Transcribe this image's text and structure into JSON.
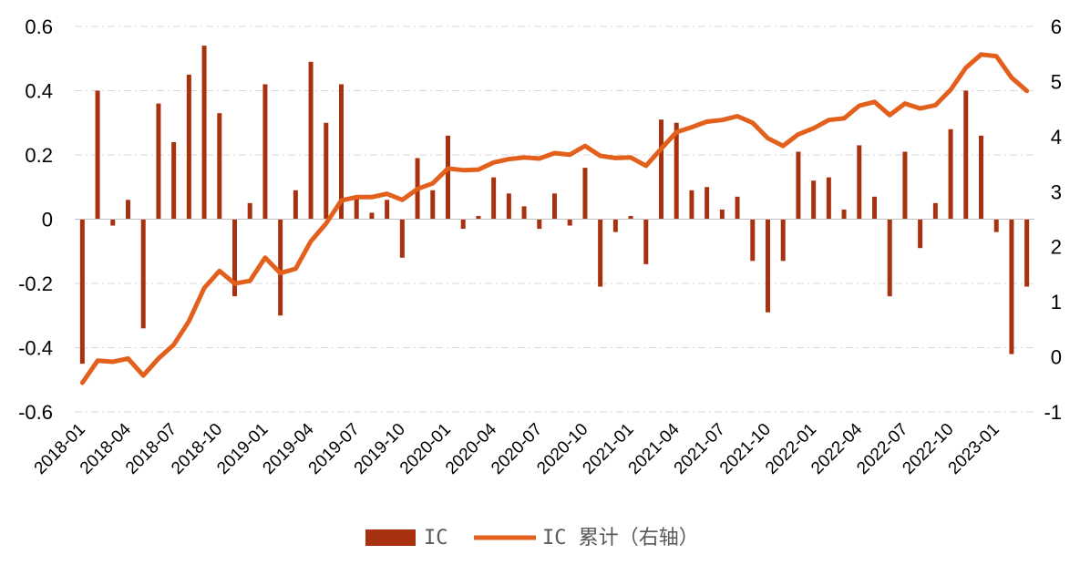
{
  "chart_data": {
    "type": "bar+line",
    "x": [
      "2018-01",
      "2018-02",
      "2018-03",
      "2018-04",
      "2018-05",
      "2018-06",
      "2018-07",
      "2018-08",
      "2018-09",
      "2018-10",
      "2018-11",
      "2018-12",
      "2019-01",
      "2019-02",
      "2019-03",
      "2019-04",
      "2019-05",
      "2019-06",
      "2019-07",
      "2019-08",
      "2019-09",
      "2019-10",
      "2019-11",
      "2019-12",
      "2020-01",
      "2020-02",
      "2020-03",
      "2020-04",
      "2020-05",
      "2020-06",
      "2020-07",
      "2020-08",
      "2020-09",
      "2020-10",
      "2020-11",
      "2020-12",
      "2021-01",
      "2021-02",
      "2021-03",
      "2021-04",
      "2021-05",
      "2021-06",
      "2021-07",
      "2021-08",
      "2021-09",
      "2021-10",
      "2021-11",
      "2021-12",
      "2022-01",
      "2022-02",
      "2022-03",
      "2022-04",
      "2022-05",
      "2022-06",
      "2022-07",
      "2022-08",
      "2022-09",
      "2022-10",
      "2022-11",
      "2022-12",
      "2023-01",
      "2023-02",
      "2023-03"
    ],
    "x_tick_labels": [
      "2018-01",
      "2018-04",
      "2018-07",
      "2018-10",
      "2019-01",
      "2019-04",
      "2019-07",
      "2019-10",
      "2020-01",
      "2020-04",
      "2020-07",
      "2020-10",
      "2021-01",
      "2021-04",
      "2021-07",
      "2021-10",
      "2022-01",
      "2022-04",
      "2022-07",
      "2022-10",
      "2023-01"
    ],
    "series": [
      {
        "name": "IC",
        "axis": "left",
        "kind": "bar",
        "color": "#A8320F",
        "values": [
          -0.45,
          0.4,
          -0.02,
          0.06,
          -0.34,
          0.36,
          0.24,
          0.45,
          0.54,
          0.33,
          -0.24,
          0.05,
          0.42,
          -0.3,
          0.09,
          0.49,
          0.3,
          0.42,
          0.07,
          0.02,
          0.06,
          -0.12,
          0.19,
          0.09,
          0.26,
          -0.03,
          0.01,
          0.13,
          0.08,
          0.04,
          -0.03,
          0.08,
          -0.02,
          0.16,
          -0.21,
          -0.04,
          0.01,
          -0.14,
          0.31,
          0.3,
          0.09,
          0.1,
          0.03,
          0.07,
          -0.13,
          -0.29,
          -0.13,
          0.21,
          0.12,
          0.13,
          0.03,
          0.23,
          0.07,
          -0.24,
          0.21,
          -0.09,
          0.05,
          0.28,
          0.4,
          0.26,
          -0.04,
          -0.42,
          -0.21
        ]
      },
      {
        "name": "IC 累计（右轴）",
        "axis": "right",
        "kind": "line",
        "color": "#E2601C",
        "values": [
          -0.47,
          -0.07,
          -0.09,
          -0.03,
          -0.34,
          -0.03,
          0.22,
          0.65,
          1.25,
          1.56,
          1.33,
          1.38,
          1.8,
          1.52,
          1.6,
          2.1,
          2.42,
          2.84,
          2.9,
          2.9,
          2.96,
          2.85,
          3.05,
          3.15,
          3.42,
          3.39,
          3.4,
          3.53,
          3.59,
          3.62,
          3.6,
          3.7,
          3.67,
          3.83,
          3.65,
          3.61,
          3.62,
          3.47,
          3.78,
          4.08,
          4.17,
          4.27,
          4.3,
          4.37,
          4.25,
          3.97,
          3.83,
          4.04,
          4.15,
          4.3,
          4.33,
          4.56,
          4.63,
          4.39,
          4.6,
          4.51,
          4.57,
          4.85,
          5.25,
          5.49,
          5.46,
          5.07,
          4.83
        ]
      }
    ],
    "y_left": {
      "ylim": [
        -0.6,
        0.6
      ],
      "ticks": [
        "0.6",
        "0.4",
        "0.2",
        "0",
        "-0.2",
        "-0.4",
        "-0.6"
      ],
      "tick_values": [
        0.6,
        0.4,
        0.2,
        0,
        -0.2,
        -0.4,
        -0.6
      ]
    },
    "y_right": {
      "ylim": [
        -1,
        6
      ],
      "ticks": [
        "6",
        "5",
        "4",
        "3",
        "2",
        "1",
        "0",
        "-1"
      ],
      "tick_values": [
        6,
        5,
        4,
        3,
        2,
        1,
        0,
        -1
      ]
    },
    "grid": true,
    "legend": {
      "placement": "bottom-center",
      "bar_label": "IC",
      "line_label": "IC 累计（右轴）"
    },
    "title": "",
    "xlabel": "",
    "ylabel": ""
  }
}
